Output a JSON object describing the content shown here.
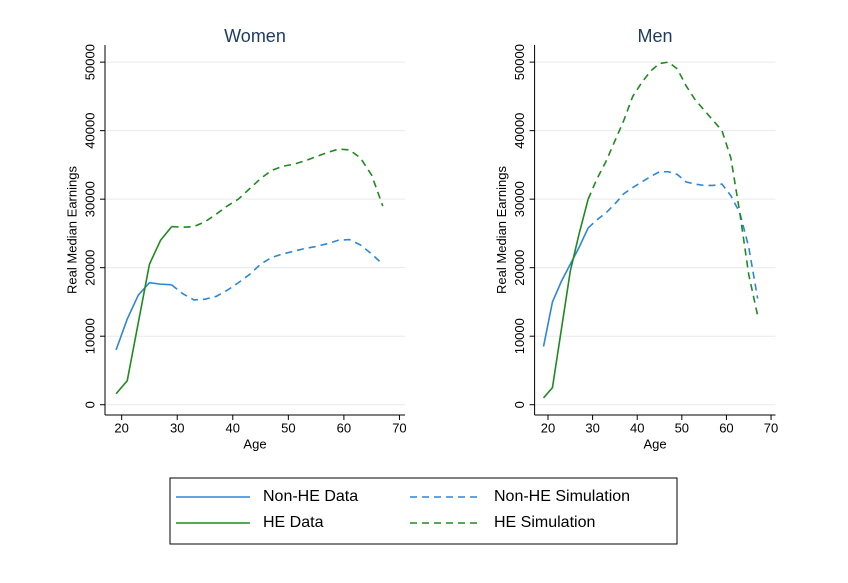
{
  "chart_data": [
    {
      "type": "line",
      "title": "Women",
      "xlabel": "Age",
      "ylabel": "Real Median Earnings",
      "x": [
        19,
        21,
        23,
        25,
        27,
        29,
        31,
        33,
        35,
        37,
        39,
        41,
        43,
        45,
        47,
        49,
        51,
        53,
        55,
        57,
        59,
        61,
        63,
        65,
        67
      ],
      "xlim": [
        17,
        71
      ],
      "ylim": [
        -1500,
        52500
      ],
      "xticks": [
        20,
        30,
        40,
        50,
        60,
        70
      ],
      "yticks": [
        0,
        10000,
        20000,
        30000,
        40000,
        50000
      ],
      "grid": true,
      "series": [
        {
          "name": "Non-HE Data",
          "color": "#2b87d9",
          "style": "solid",
          "values": [
            8000,
            12500,
            16000,
            17800,
            17600,
            17500,
            null,
            null,
            null,
            null,
            null,
            null,
            null,
            null,
            null,
            null,
            null,
            null,
            null,
            null,
            null,
            null,
            null,
            null,
            null
          ]
        },
        {
          "name": "HE Data",
          "color": "#1f8a1f",
          "style": "solid",
          "values": [
            1600,
            3500,
            12000,
            20500,
            24000,
            26000,
            null,
            null,
            null,
            null,
            null,
            null,
            null,
            null,
            null,
            null,
            null,
            null,
            null,
            null,
            null,
            null,
            null,
            null,
            null
          ]
        },
        {
          "name": "Non-HE Simulation",
          "color": "#2b87d9",
          "style": "dashed",
          "values": [
            null,
            null,
            null,
            null,
            null,
            17500,
            16200,
            15300,
            15400,
            15800,
            16700,
            17800,
            19000,
            20500,
            21500,
            22000,
            22400,
            22800,
            23100,
            23500,
            24000,
            24100,
            23300,
            22000,
            20500
          ]
        },
        {
          "name": "HE Simulation",
          "color": "#1f8a1f",
          "style": "dashed",
          "values": [
            null,
            null,
            null,
            null,
            null,
            26000,
            25900,
            26000,
            26700,
            27800,
            29000,
            30000,
            31500,
            33000,
            34200,
            34800,
            35100,
            35600,
            36200,
            36800,
            37300,
            37200,
            36000,
            33500,
            29000
          ]
        }
      ]
    },
    {
      "type": "line",
      "title": "Men",
      "xlabel": "Age",
      "ylabel": "Real Median Earnings",
      "x": [
        19,
        21,
        23,
        25,
        27,
        29,
        31,
        33,
        35,
        37,
        39,
        41,
        43,
        45,
        47,
        49,
        51,
        53,
        55,
        57,
        59,
        61,
        63,
        65,
        67
      ],
      "xlim": [
        17,
        71
      ],
      "ylim": [
        -1500,
        52500
      ],
      "xticks": [
        20,
        30,
        40,
        50,
        60,
        70
      ],
      "yticks": [
        0,
        10000,
        20000,
        30000,
        40000,
        50000
      ],
      "grid": true,
      "series": [
        {
          "color": "#2b87d9",
          "style": "solid",
          "values": [
            8500,
            15000,
            18000,
            20500,
            23000,
            25800,
            null,
            null,
            null,
            null,
            null,
            null,
            null,
            null,
            null,
            null,
            null,
            null,
            null,
            null,
            null,
            null,
            null,
            null,
            null
          ]
        },
        {
          "color": "#1f8a1f",
          "style": "solid",
          "values": [
            1000,
            2500,
            11000,
            19500,
            25000,
            30000,
            null,
            null,
            null,
            null,
            null,
            null,
            null,
            null,
            null,
            null,
            null,
            null,
            null,
            null,
            null,
            null,
            null,
            null,
            null
          ]
        },
        {
          "color": "#2b87d9",
          "style": "dashed",
          "values": [
            null,
            null,
            null,
            null,
            null,
            25800,
            27000,
            28000,
            29300,
            30800,
            31700,
            32500,
            33300,
            34000,
            34000,
            33600,
            32500,
            32200,
            32000,
            32000,
            32200,
            30500,
            28000,
            23000,
            15500
          ]
        },
        {
          "color": "#1f8a1f",
          "style": "dashed",
          "values": [
            null,
            null,
            null,
            null,
            null,
            30000,
            33000,
            35500,
            38500,
            41500,
            45000,
            47000,
            48700,
            49800,
            50000,
            49000,
            46500,
            44500,
            43000,
            41500,
            40000,
            36000,
            28000,
            19000,
            13000
          ]
        }
      ]
    }
  ]
}
